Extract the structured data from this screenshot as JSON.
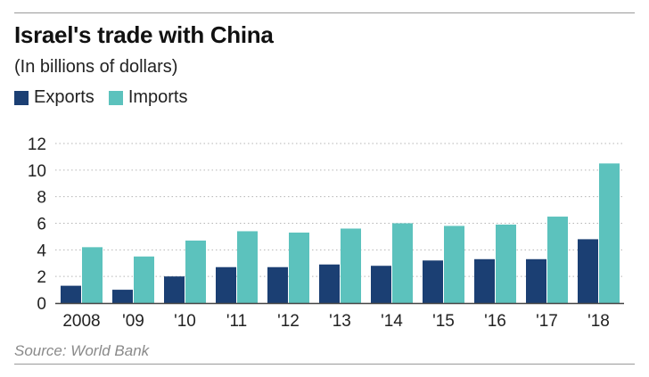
{
  "title": "Israel's trade with China",
  "subtitle": "(In billions of dollars)",
  "source": "Source: World Bank",
  "colors": {
    "exports": "#1b3f73",
    "imports": "#5cc2bd"
  },
  "chart_data": {
    "type": "bar",
    "title": "Israel's trade with China",
    "subtitle": "(In billions of dollars)",
    "categories": [
      "2008",
      "'09",
      "'10",
      "'11",
      "'12",
      "'13",
      "'14",
      "'15",
      "'16",
      "'17",
      "'18"
    ],
    "series": [
      {
        "name": "Exports",
        "values": [
          1.3,
          1.0,
          2.0,
          2.7,
          2.7,
          2.9,
          2.8,
          3.2,
          3.3,
          3.3,
          4.8
        ]
      },
      {
        "name": "Imports",
        "values": [
          4.2,
          3.5,
          4.7,
          5.4,
          5.3,
          5.6,
          6.0,
          5.8,
          5.9,
          6.5,
          10.5
        ]
      }
    ],
    "ylim": [
      0,
      12
    ],
    "yticks": [
      0,
      2,
      4,
      6,
      8,
      10,
      12
    ],
    "grid": true,
    "legend": "top-left"
  }
}
